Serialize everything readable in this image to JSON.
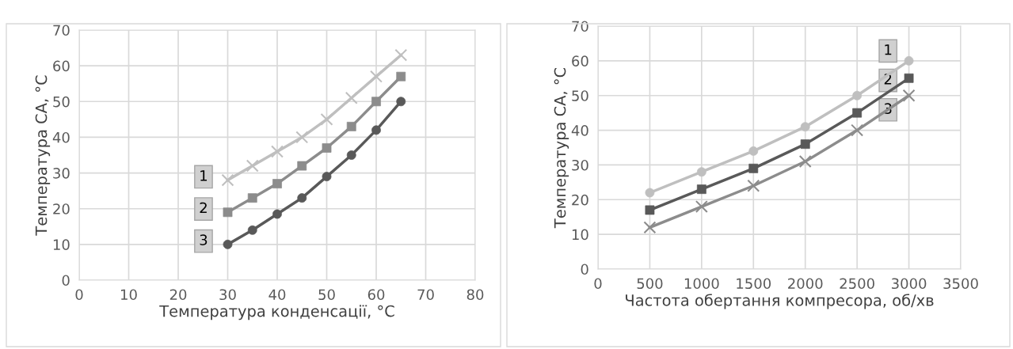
{
  "chart_data": [
    {
      "type": "line",
      "xlabel": "Температура конденсації, °C",
      "ylabel": "Температура СА, °C",
      "x": [
        30,
        35,
        40,
        45,
        50,
        55,
        60,
        65
      ],
      "xlim": [
        0,
        80
      ],
      "xticks": [
        0,
        10,
        20,
        30,
        40,
        50,
        60,
        70,
        80
      ],
      "ylim": [
        0,
        70
      ],
      "yticks": [
        0,
        10,
        20,
        30,
        40,
        50,
        60,
        70
      ],
      "grid": true,
      "legend": false,
      "series": [
        {
          "name": "1",
          "color": "#bfbfbf",
          "marker": "cross",
          "values": [
            28,
            32,
            36,
            40,
            45,
            51,
            57,
            63
          ]
        },
        {
          "name": "2",
          "color": "#8c8c8c",
          "marker": "square",
          "values": [
            19,
            23,
            27,
            32,
            37,
            43,
            50,
            57
          ]
        },
        {
          "name": "3",
          "color": "#595959",
          "marker": "circle",
          "values": [
            10,
            14,
            18.5,
            23,
            29,
            35,
            42,
            50
          ]
        }
      ]
    },
    {
      "type": "line",
      "xlabel": "Частота обертання компресора, об/хв",
      "ylabel": "Температура СА, °C",
      "x": [
        500,
        1000,
        1500,
        2000,
        2500,
        3000
      ],
      "xlim": [
        0,
        3500
      ],
      "xticks": [
        0,
        500,
        1000,
        1500,
        2000,
        2500,
        3000,
        3500
      ],
      "ylim": [
        0,
        70
      ],
      "yticks": [
        0,
        10,
        20,
        30,
        40,
        50,
        60,
        70
      ],
      "grid": true,
      "legend": false,
      "series": [
        {
          "name": "1",
          "color": "#bfbfbf",
          "marker": "circle",
          "values": [
            22,
            28,
            34,
            41,
            50,
            60
          ]
        },
        {
          "name": "2",
          "color": "#595959",
          "marker": "square",
          "values": [
            17,
            23,
            29,
            36,
            45,
            55
          ]
        },
        {
          "name": "3",
          "color": "#8c8c8c",
          "marker": "cross",
          "values": [
            12,
            18,
            24,
            31,
            40,
            50
          ]
        }
      ]
    }
  ]
}
